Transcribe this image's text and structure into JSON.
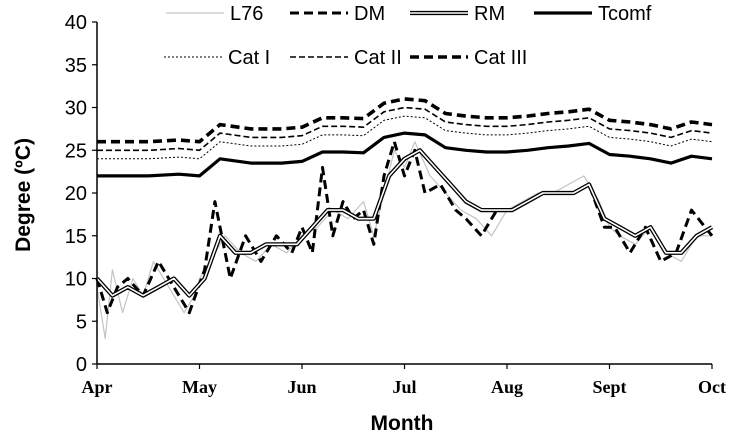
{
  "chart_data": {
    "type": "line",
    "xlabel": "Month",
    "ylabel": "Degree (ºC)",
    "ylim": [
      0,
      40
    ],
    "yticks": [
      0,
      5,
      10,
      15,
      20,
      25,
      30,
      35,
      40
    ],
    "categories": [
      "Apr",
      "May",
      "Jun",
      "Jul",
      "Aug",
      "Sept",
      "Oct"
    ],
    "grid": false,
    "legend_placement": "top",
    "series": [
      {
        "name": "L76",
        "style": "thin-gray",
        "color": "#bdbdbd",
        "x": [
          0,
          0.08,
          0.15,
          0.25,
          0.35,
          0.45,
          0.55,
          0.7,
          0.85,
          0.95,
          1.0,
          1.1,
          1.25,
          1.4,
          1.55,
          1.7,
          1.85,
          2.0,
          2.15,
          2.3,
          2.45,
          2.6,
          2.7,
          2.8,
          2.9,
          3.0,
          3.1,
          3.25,
          3.4,
          3.55,
          3.7,
          3.85,
          4.0,
          4.15,
          4.3,
          4.45,
          4.6,
          4.75,
          4.9,
          5.0,
          5.1,
          5.25,
          5.4,
          5.55,
          5.7,
          5.85,
          6.0
        ],
        "y": [
          9,
          3,
          11,
          6,
          10,
          8,
          12,
          9,
          6,
          8,
          10,
          12,
          15,
          13,
          12,
          14,
          13,
          15,
          16,
          18,
          17,
          19,
          15,
          20,
          25,
          23,
          26,
          22,
          20,
          18,
          17,
          15,
          18,
          19,
          20,
          20,
          21,
          22,
          19,
          16,
          15,
          14,
          16,
          13,
          12,
          15,
          15
        ]
      },
      {
        "name": "DM",
        "style": "dashed",
        "color": "#000000",
        "x": [
          0,
          0.1,
          0.2,
          0.3,
          0.45,
          0.6,
          0.75,
          0.9,
          1.05,
          1.15,
          1.3,
          1.45,
          1.6,
          1.75,
          1.9,
          2.0,
          2.1,
          2.2,
          2.3,
          2.4,
          2.5,
          2.6,
          2.7,
          2.8,
          2.9,
          3.0,
          3.1,
          3.2,
          3.35,
          3.5,
          3.6,
          3.75,
          3.9,
          4.05,
          4.2,
          4.35,
          4.5,
          4.65,
          4.8,
          4.95,
          5.05,
          5.2,
          5.35,
          5.5,
          5.65,
          5.8,
          6.0
        ],
        "y": [
          10,
          6,
          9,
          10,
          8,
          12,
          9,
          6,
          11,
          19,
          10,
          15,
          12,
          15,
          13,
          16,
          13,
          23,
          15,
          19,
          17,
          18,
          14,
          22,
          26,
          22,
          25,
          20,
          21,
          18,
          17,
          15,
          18,
          18,
          19,
          20,
          20,
          20,
          21,
          16,
          16,
          13,
          16,
          12,
          13,
          18,
          15
        ]
      },
      {
        "name": "RM",
        "style": "double",
        "color": "#000000",
        "x": [
          0,
          0.15,
          0.3,
          0.45,
          0.6,
          0.75,
          0.9,
          1.05,
          1.2,
          1.35,
          1.5,
          1.65,
          1.8,
          1.95,
          2.1,
          2.25,
          2.4,
          2.55,
          2.7,
          2.85,
          3.0,
          3.15,
          3.3,
          3.45,
          3.6,
          3.75,
          3.9,
          4.05,
          4.2,
          4.35,
          4.5,
          4.65,
          4.8,
          4.95,
          5.1,
          5.25,
          5.4,
          5.55,
          5.7,
          5.85,
          6.0
        ],
        "y": [
          10,
          8,
          9,
          8,
          9,
          10,
          8,
          10,
          15,
          13,
          13,
          14,
          14,
          14,
          16,
          18,
          18,
          17,
          17,
          22,
          24,
          25,
          23,
          21,
          19,
          18,
          18,
          18,
          19,
          20,
          20,
          20,
          21,
          17,
          16,
          15,
          16,
          13,
          13,
          15,
          16
        ]
      },
      {
        "name": "Tcomf",
        "style": "thick-solid",
        "color": "#000000",
        "x": [
          0,
          0.5,
          0.8,
          1.0,
          1.1,
          1.2,
          1.5,
          1.8,
          2.0,
          2.2,
          2.4,
          2.6,
          2.8,
          3.0,
          3.2,
          3.4,
          3.6,
          3.8,
          4.0,
          4.2,
          4.4,
          4.6,
          4.8,
          5.0,
          5.2,
          5.4,
          5.6,
          5.8,
          6.0
        ],
        "y": [
          22,
          22,
          22.2,
          22,
          23,
          24,
          23.5,
          23.5,
          23.7,
          24.8,
          24.8,
          24.7,
          26.5,
          27,
          26.8,
          25.3,
          25,
          24.8,
          24.8,
          25,
          25.3,
          25.5,
          25.8,
          24.5,
          24.3,
          24,
          23.5,
          24.3,
          24
        ]
      }
    ],
    "bands": [
      {
        "name": "Cat I",
        "style": "dotted",
        "offset": 2
      },
      {
        "name": "Cat II",
        "style": "dashed-thin",
        "offset": 3
      },
      {
        "name": "Cat III",
        "style": "dashed-thick",
        "offset": 4
      }
    ]
  }
}
